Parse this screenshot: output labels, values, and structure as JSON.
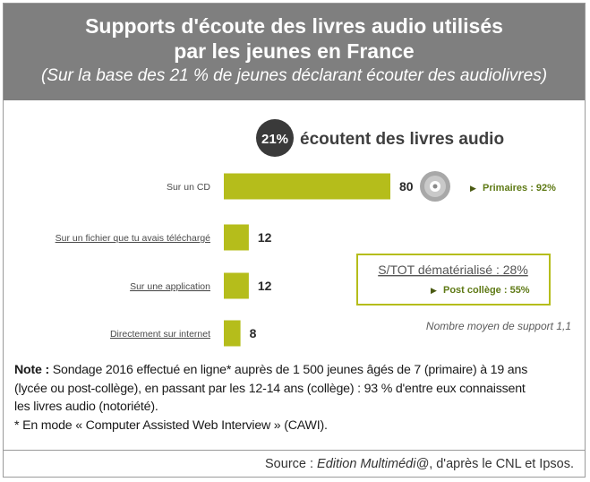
{
  "header": {
    "title_line1": "Supports d'écoute des livres audio utilisés",
    "title_line2": "par les jeunes en France",
    "subtitle": "(Sur la base des 21 % de jeunes déclarant écouter des audiolivres)"
  },
  "chart_data": {
    "type": "bar",
    "orientation": "horizontal",
    "headline_badge": "21%",
    "headline_text": "écoutent des livres audio",
    "categories": [
      "Sur un CD",
      "Sur un fichier que tu avais téléchargé",
      "Sur une application",
      "Directement sur internet"
    ],
    "values": [
      80,
      12,
      12,
      8
    ],
    "value_labels": [
      "80",
      "12",
      "12",
      "8"
    ],
    "xlim": [
      0,
      80
    ],
    "bar_color": "#b5bd1b",
    "annotations": {
      "cd_arrow": "▶",
      "primaires": "Primaires : 92%",
      "box_title": "S/TOT dématérialisé : 28%",
      "box_arrow": "▶",
      "box_sub": "Post collège   : 55%",
      "average": "Nombre moyen de support 1,1"
    },
    "accent_green": "#8aa51e",
    "grid": false
  },
  "notes": {
    "label": "Note :",
    "line1": " Sondage 2016 effectué en ligne* auprès de 1 500 jeunes âgés de 7 (primaire) à 19 ans",
    "line2": "(lycée ou post-collège), en passant par les 12-14 ans (collège) : 93 % d'entre eux connaissent",
    "line3": "les livres audio (notoriété).",
    "footnote": "* En mode « Computer Assisted Web Interview » (CAWI)."
  },
  "source": {
    "prefix": "Source : ",
    "italic": "Edition Multimédi@",
    "suffix": ", d'après le CNL et Ipsos."
  },
  "icons": {
    "cd": "cd-disc-icon",
    "arrow": "triangle-right-icon"
  }
}
